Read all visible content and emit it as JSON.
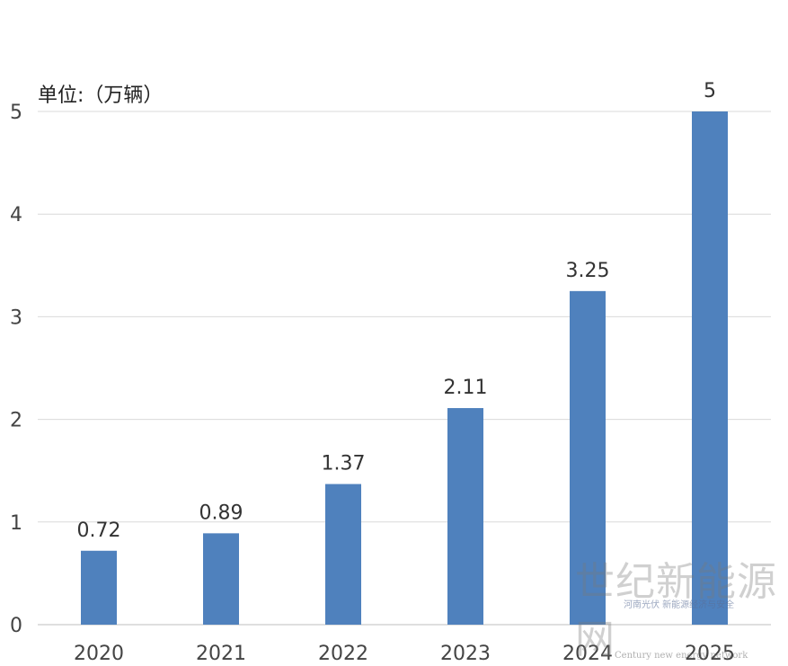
{
  "chart_data": {
    "type": "bar",
    "unit_label": "单位:（万辆）",
    "categories": [
      "2020",
      "2021",
      "2022",
      "2023",
      "2024",
      "2025"
    ],
    "values": [
      0.72,
      0.89,
      1.37,
      2.11,
      3.25,
      5
    ],
    "value_labels": [
      "0.72",
      "0.89",
      "1.37",
      "2.11",
      "3.25",
      "5"
    ],
    "y_ticks": [
      "0",
      "1",
      "2",
      "3",
      "4",
      "5"
    ],
    "ylim": [
      0,
      5
    ],
    "grid": true,
    "bar_color": "#4f81bd"
  },
  "watermark": {
    "chinese": "世纪新能源网",
    "english": "Century new energy network",
    "tagline": "河南光伏 新能源经济与安全"
  }
}
